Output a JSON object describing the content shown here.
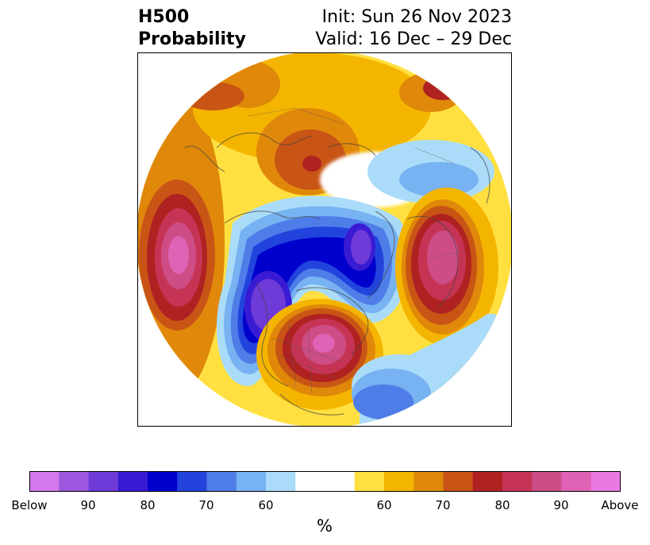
{
  "title": {
    "left_line1": "H500",
    "left_line2": "Probability",
    "right_line1": "Init: Sun 26 Nov 2023",
    "right_line2": "Valid: 16 Dec – 29 Dec"
  },
  "colorbar": {
    "unit": "%",
    "tick_labels": [
      "Below",
      "90",
      "80",
      "70",
      "60",
      "60",
      "70",
      "80",
      "90",
      "Above"
    ],
    "colors": [
      "#d57aec",
      "#9e58e0",
      "#6e3ad8",
      "#3a1bd4",
      "#0000cd",
      "#2244dd",
      "#4f7de8",
      "#77b2f2",
      "#aadcf9",
      "#ffffff",
      "#ffffff",
      "#ffe040",
      "#f4b500",
      "#e0880a",
      "#c85515",
      "#b02222",
      "#c63455",
      "#ce4d86",
      "#de62b5",
      "#e97ae2"
    ]
  },
  "map": {
    "projection": "north-polar-stereographic",
    "variable": "500 hPa height anomaly probability",
    "features": [
      {
        "name": "north-pacific-above",
        "category": "Above"
      },
      {
        "name": "eastern-north-america-above",
        "category": "Above"
      },
      {
        "name": "scandinavia-above",
        "category": "Above"
      },
      {
        "name": "siberia-above",
        "category": "80"
      },
      {
        "name": "western-canada-below",
        "category": "90"
      },
      {
        "name": "greenland-below",
        "category": "90"
      },
      {
        "name": "north-atlantic-below",
        "category": "70"
      },
      {
        "name": "western-europe-below",
        "category": "60"
      }
    ]
  }
}
